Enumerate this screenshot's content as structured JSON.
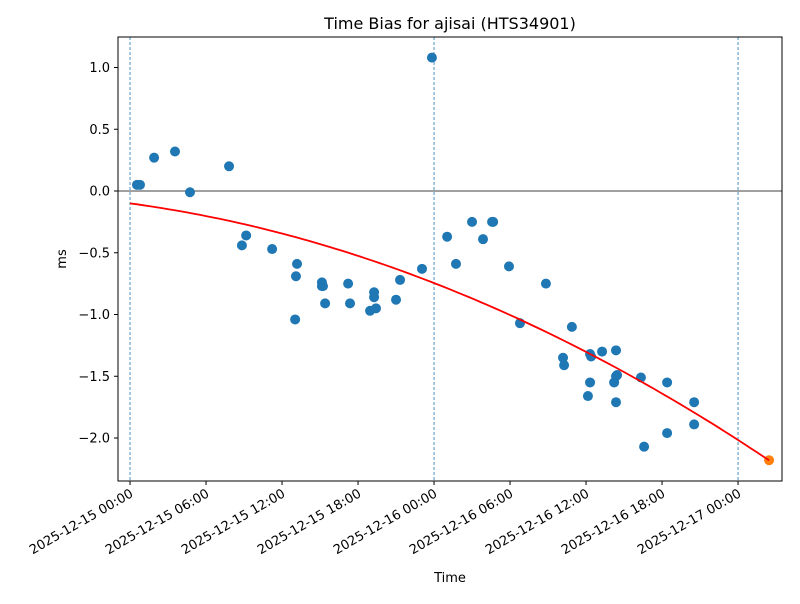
{
  "chart_data": {
    "type": "scatter",
    "title": "Time Bias for ajisai (HTS34901)",
    "xlabel": "Time",
    "ylabel": "ms",
    "start": "2025-12-15T00:00",
    "xlim_hours": [
      -0.95,
      51.47
    ],
    "ylim": [
      -2.348,
      1.247
    ],
    "grid": false,
    "yticks": [
      1.0,
      0.5,
      0.0,
      -0.5,
      -1.0,
      -1.5,
      -2.0
    ],
    "ytick_labels": [
      "1.0",
      "0.5",
      "0.0",
      "−0.5",
      "−1.0",
      "−1.5",
      "−2.0"
    ],
    "xticks_hours": [
      0,
      6,
      12,
      18,
      24,
      30,
      36,
      42,
      48
    ],
    "xtick_labels": [
      "2025-12-15 00:00",
      "2025-12-15 06:00",
      "2025-12-15 12:00",
      "2025-12-15 18:00",
      "2025-12-16 00:00",
      "2025-12-16 06:00",
      "2025-12-16 12:00",
      "2025-12-16 18:00",
      "2025-12-17 00:00"
    ],
    "vlines_hours": [
      0,
      24,
      48
    ],
    "hline": 0,
    "colors": {
      "points": "#1f77b4",
      "predicted": "#ff7f0e",
      "fit": "#ff0000",
      "vline": "#1f77b4"
    },
    "series": [
      {
        "name": "observed",
        "points": [
          [
            "2025-12-15T00:33",
            0.05
          ],
          [
            "2025-12-15T00:47",
            0.05
          ],
          [
            "2025-12-15T01:54",
            0.27
          ],
          [
            "2025-12-15T03:33",
            0.32
          ],
          [
            "2025-12-15T04:44",
            -0.01
          ],
          [
            "2025-12-15T07:49",
            0.2
          ],
          [
            "2025-12-15T08:50",
            -0.44
          ],
          [
            "2025-12-15T09:10",
            -0.36
          ],
          [
            "2025-12-15T11:13",
            -0.47
          ],
          [
            "2025-12-15T13:02",
            -1.04
          ],
          [
            "2025-12-15T13:06",
            -0.69
          ],
          [
            "2025-12-15T13:11",
            -0.59
          ],
          [
            "2025-12-15T15:09",
            -0.74
          ],
          [
            "2025-12-15T15:09",
            -0.77
          ],
          [
            "2025-12-15T15:14",
            -0.77
          ],
          [
            "2025-12-15T15:24",
            -0.91
          ],
          [
            "2025-12-15T17:13",
            -0.75
          ],
          [
            "2025-12-15T17:22",
            -0.91
          ],
          [
            "2025-12-15T18:57",
            -0.97
          ],
          [
            "2025-12-15T19:16",
            -0.82
          ],
          [
            "2025-12-15T19:16",
            -0.86
          ],
          [
            "2025-12-15T19:25",
            -0.95
          ],
          [
            "2025-12-15T21:00",
            -0.88
          ],
          [
            "2025-12-15T21:19",
            -0.72
          ],
          [
            "2025-12-15T23:03",
            -0.63
          ],
          [
            "2025-12-15T23:50",
            1.08
          ],
          [
            "2025-12-16T01:02",
            -0.37
          ],
          [
            "2025-12-16T01:44",
            -0.59
          ],
          [
            "2025-12-16T03:00",
            -0.25
          ],
          [
            "2025-12-16T03:52",
            -0.39
          ],
          [
            "2025-12-16T04:35",
            -0.25
          ],
          [
            "2025-12-16T04:40",
            -0.25
          ],
          [
            "2025-12-16T05:55",
            -0.61
          ],
          [
            "2025-12-16T06:47",
            -1.07
          ],
          [
            "2025-12-16T08:50",
            -0.75
          ],
          [
            "2025-12-16T10:11",
            -1.35
          ],
          [
            "2025-12-16T10:16",
            -1.41
          ],
          [
            "2025-12-16T10:53",
            -1.1
          ],
          [
            "2025-12-16T12:09",
            -1.66
          ],
          [
            "2025-12-16T12:19",
            -1.55
          ],
          [
            "2025-12-16T12:19",
            -1.32
          ],
          [
            "2025-12-16T12:24",
            -1.34
          ],
          [
            "2025-12-16T13:16",
            -1.3
          ],
          [
            "2025-12-16T14:13",
            -1.55
          ],
          [
            "2025-12-16T14:22",
            -1.5
          ],
          [
            "2025-12-16T14:22",
            -1.29
          ],
          [
            "2025-12-16T14:22",
            -1.71
          ],
          [
            "2025-12-16T14:27",
            -1.49
          ],
          [
            "2025-12-16T16:20",
            -1.51
          ],
          [
            "2025-12-16T16:35",
            -2.07
          ],
          [
            "2025-12-16T18:24",
            -1.55
          ],
          [
            "2025-12-16T18:24",
            -1.96
          ],
          [
            "2025-12-16T20:32",
            -1.71
          ],
          [
            "2025-12-16T20:32",
            -1.89
          ]
        ]
      },
      {
        "name": "predicted",
        "points": [
          [
            "2025-12-17T02:27",
            -2.18
          ]
        ]
      }
    ],
    "fit": {
      "type": "quadratic",
      "coeffs_hours": [
        -0.1,
        -0.01385,
        -0.000543
      ],
      "range_hours": [
        0,
        50.45
      ]
    }
  }
}
